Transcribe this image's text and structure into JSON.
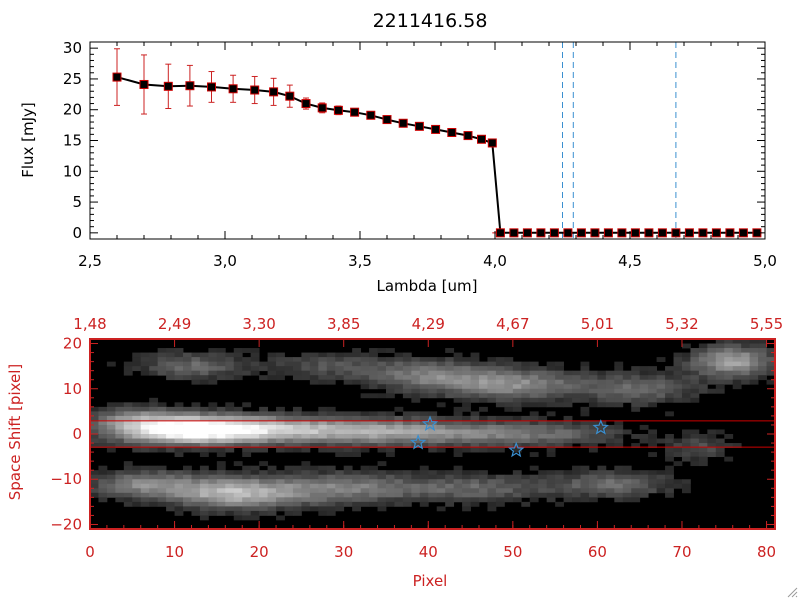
{
  "chart_data": [
    {
      "type": "line",
      "title": "2211416.58",
      "xlabel": "Lambda [um]",
      "ylabel": "Flux [mJy]",
      "xlim": [
        2.5,
        5.0
      ],
      "ylim": [
        -1,
        31
      ],
      "x_ticks": [
        "2.5",
        "3.0",
        "3.5",
        "4.0",
        "4.5",
        "5.0"
      ],
      "y_ticks": [
        "0",
        "5",
        "10",
        "15",
        "20",
        "25",
        "30"
      ],
      "series": [
        {
          "x": [
            2.6,
            2.7,
            2.79,
            2.87,
            2.95,
            3.03,
            3.11,
            3.18,
            3.24,
            3.3,
            3.36,
            3.42,
            3.48,
            3.54,
            3.6,
            3.66,
            3.72,
            3.78,
            3.84,
            3.9,
            3.95,
            3.99,
            4.02,
            4.07,
            4.12,
            4.17,
            4.22,
            4.27,
            4.32,
            4.37,
            4.42,
            4.47,
            4.52,
            4.57,
            4.62,
            4.67,
            4.72,
            4.77,
            4.82,
            4.87,
            4.92,
            4.97
          ],
          "y": [
            25.3,
            24.1,
            23.8,
            23.9,
            23.7,
            23.4,
            23.2,
            22.9,
            22.2,
            21.0,
            20.3,
            19.9,
            19.6,
            19.1,
            18.4,
            17.8,
            17.3,
            16.8,
            16.3,
            15.8,
            15.2,
            14.6,
            0,
            0,
            0,
            0,
            0,
            0,
            0,
            0,
            0,
            0,
            0,
            0,
            0,
            0,
            0,
            0,
            0,
            0,
            0,
            0
          ],
          "yerr": [
            4.6,
            4.8,
            3.6,
            3.3,
            2.5,
            2.2,
            2.2,
            2.2,
            1.8,
            0.9,
            0.8,
            0.7,
            0.6,
            0.6,
            0.6,
            0.5,
            0.5,
            0.5,
            0.5,
            0.5,
            0.5,
            0.5,
            0,
            0,
            0,
            0,
            0,
            0,
            0,
            0,
            0,
            0,
            0,
            0,
            0,
            0,
            0,
            0,
            0,
            0,
            0,
            0
          ]
        }
      ],
      "vlines_x": [
        4.25,
        4.29,
        4.67
      ],
      "colors": {
        "line": "#000000",
        "marker": "#000000",
        "marker_edge": "#cc0000",
        "errorbar": "#cc2222",
        "vline": "#3a8fd0",
        "zero_line": "#cc0000"
      }
    },
    {
      "type": "heatmap",
      "xlabel": "Pixel",
      "ylabel": "Space Shift [pixel]",
      "xlim": [
        0,
        81
      ],
      "ylim": [
        -21,
        21
      ],
      "x_ticks": [
        "0",
        "10",
        "20",
        "30",
        "40",
        "50",
        "60",
        "70",
        "80"
      ],
      "y_ticks": [
        "-20",
        "-10",
        "0",
        "10",
        "20"
      ],
      "top_ticks": [
        "1.48",
        "2.49",
        "3.30",
        "3.85",
        "4.29",
        "4.67",
        "5.01",
        "5.32",
        "5.55"
      ],
      "aperture_lines_y": [
        2.9,
        -2.9
      ],
      "stars": [
        {
          "x": 40.2,
          "y": 2.2
        },
        {
          "x": 38.8,
          "y": -1.9
        },
        {
          "x": 50.4,
          "y": -3.6
        },
        {
          "x": 60.4,
          "y": 1.4
        }
      ],
      "colors": {
        "frame": "#cc2222",
        "labels": "#cc2222",
        "aperture": "#cc0000",
        "star": "#3a8fd0",
        "background": "#000000"
      }
    }
  ]
}
